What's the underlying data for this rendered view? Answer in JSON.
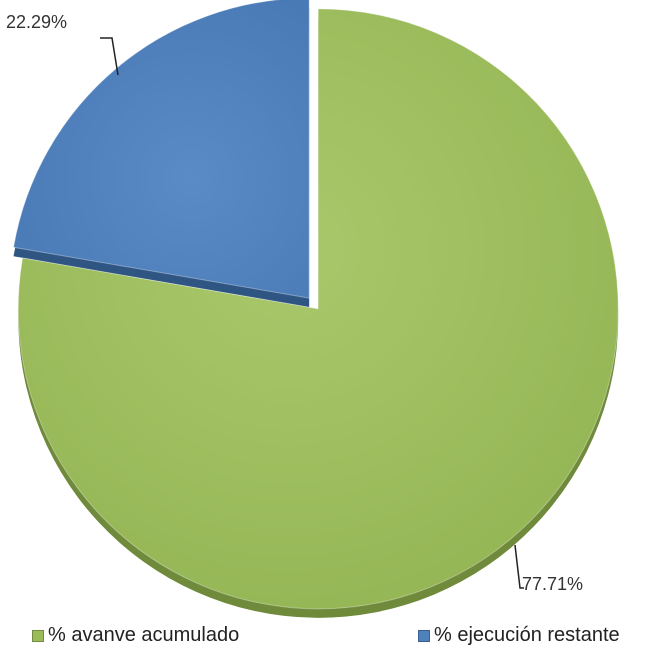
{
  "chart_data": {
    "type": "pie",
    "title": "",
    "series": [
      {
        "values": [
          77.71,
          22.29
        ],
        "labels": [
          "% avanve acumulado",
          "% ejecución restante"
        ],
        "data_labels": [
          "77.71%",
          "22.29%"
        ]
      }
    ],
    "categories": [
      "% avanve acumulado",
      "% ejecución restante"
    ],
    "values": [
      77.71,
      22.29
    ],
    "colors": [
      "#9BBB59",
      "#4F81BD"
    ],
    "style": "3d-exploded",
    "legend_position": "bottom"
  }
}
